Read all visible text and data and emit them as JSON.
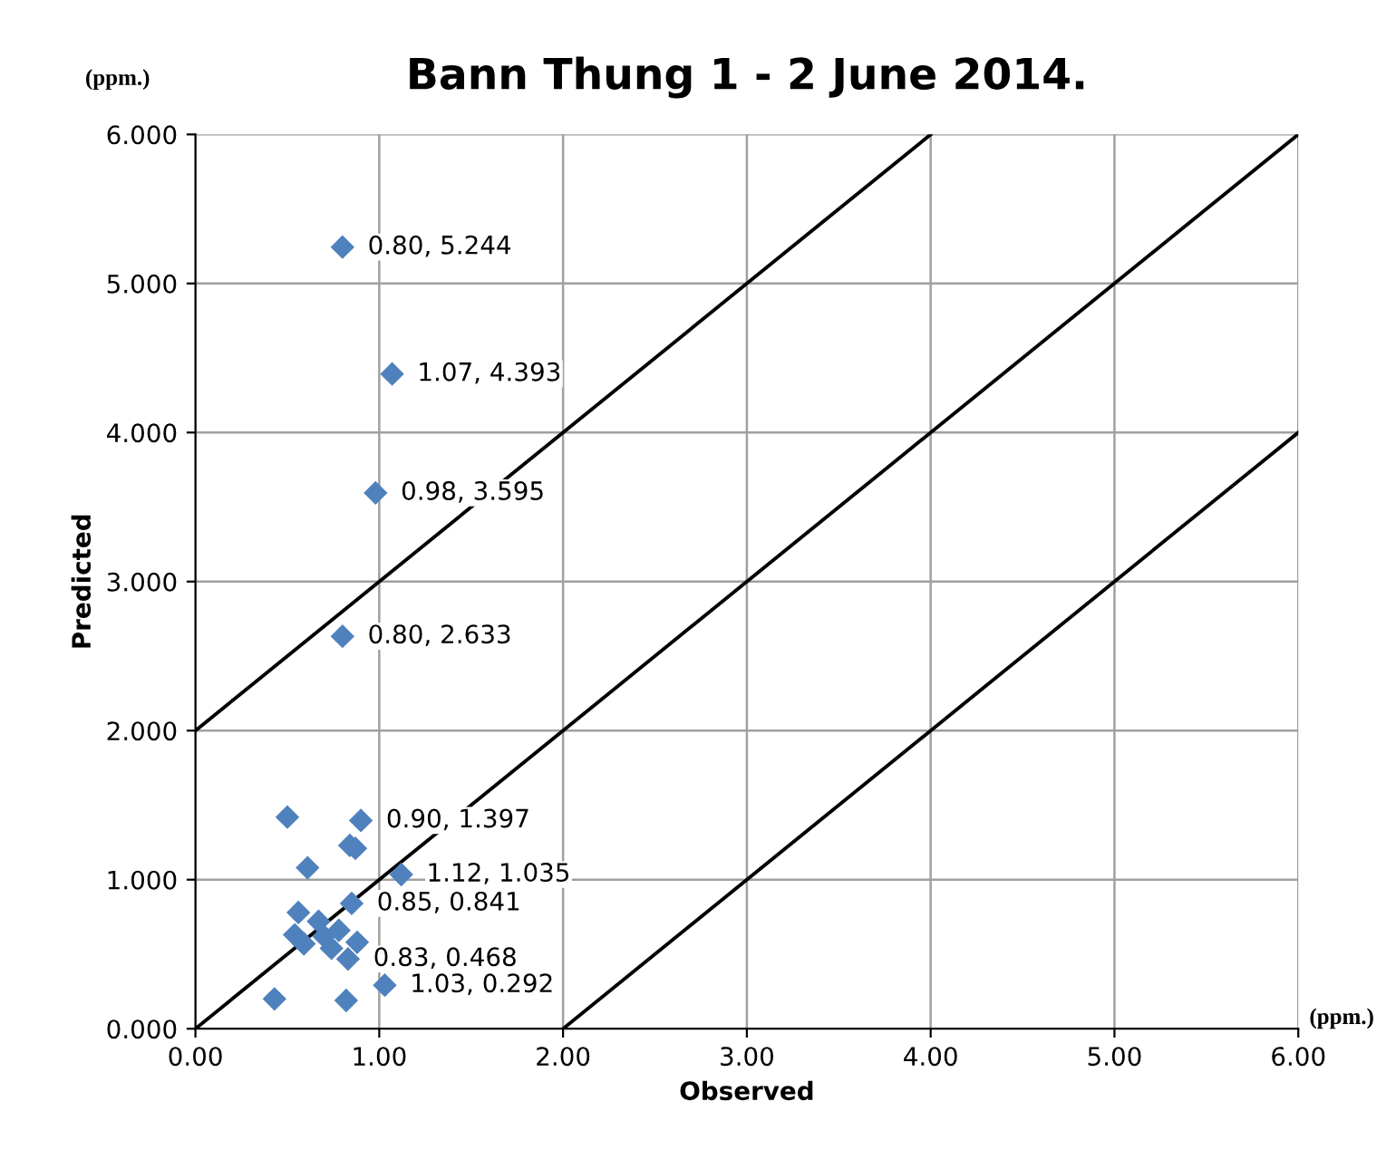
{
  "chart_data": {
    "type": "scatter",
    "title": "Bann Thung 1 - 2 June 2014.",
    "xlabel": "Observed",
    "ylabel": "Predicted",
    "annotations": [
      "(ppm.)",
      "(ppm.)"
    ],
    "xlim": [
      0,
      6
    ],
    "ylim": [
      0,
      6
    ],
    "xticks": [
      {
        "value": 0,
        "label": "0.00"
      },
      {
        "value": 1,
        "label": "1.00"
      },
      {
        "value": 2,
        "label": "2.00"
      },
      {
        "value": 3,
        "label": "3.00"
      },
      {
        "value": 4,
        "label": "4.00"
      },
      {
        "value": 5,
        "label": "5.00"
      },
      {
        "value": 6,
        "label": "6.00"
      }
    ],
    "yticks": [
      {
        "value": 0,
        "label": "0.000"
      },
      {
        "value": 1,
        "label": "1.000"
      },
      {
        "value": 2,
        "label": "2.000"
      },
      {
        "value": 3,
        "label": "3.000"
      },
      {
        "value": 4,
        "label": "4.000"
      },
      {
        "value": 5,
        "label": "5.000"
      },
      {
        "value": 6,
        "label": "6.000"
      }
    ],
    "grid": true,
    "legend": false,
    "marker": "diamond",
    "series": [
      {
        "color": "#4f81bd",
        "x": [
          0.8,
          1.07,
          0.98,
          0.8,
          0.5,
          0.9,
          0.84,
          0.87,
          0.61,
          1.12,
          0.85,
          0.56,
          0.67,
          0.54,
          0.59,
          0.74,
          0.83,
          1.03,
          0.43,
          0.82,
          0.7,
          0.78,
          0.88
        ],
        "values": [
          5.244,
          4.393,
          3.595,
          2.633,
          1.42,
          1.397,
          1.23,
          1.21,
          1.08,
          1.035,
          0.841,
          0.78,
          0.72,
          0.63,
          0.57,
          0.54,
          0.468,
          0.292,
          0.2,
          0.19,
          0.62,
          0.66,
          0.58
        ],
        "value_labels": [
          "0.80, 5.244",
          "1.07, 4.393",
          "0.98, 3.595",
          "0.80, 2.633",
          null,
          "0.90, 1.397",
          null,
          null,
          null,
          "1.12, 1.035",
          "0.85, 0.841",
          null,
          null,
          null,
          null,
          null,
          "0.83, 0.468",
          "1.03, 0.292",
          null,
          null,
          null,
          null,
          null
        ]
      },
      {
        "type": "line",
        "color": "#000000",
        "marker": "none",
        "x": [
          0,
          4
        ],
        "values": [
          2,
          6
        ]
      },
      {
        "type": "line",
        "color": "#000000",
        "marker": "none",
        "x": [
          0,
          6
        ],
        "values": [
          0,
          6
        ]
      },
      {
        "type": "line",
        "color": "#000000",
        "marker": "none",
        "x": [
          2,
          6
        ],
        "values": [
          0,
          4
        ]
      }
    ]
  }
}
